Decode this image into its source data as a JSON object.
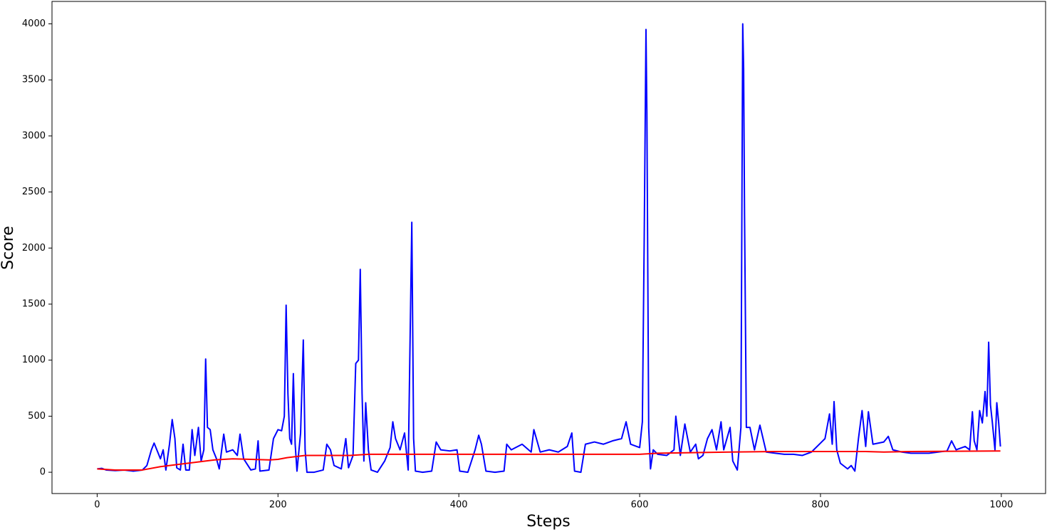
{
  "chart_data": {
    "type": "line",
    "xlabel": "Steps",
    "ylabel": "Score",
    "xlim": [
      -49.95,
      1048.95
    ],
    "ylim": [
      -190,
      4200
    ],
    "xticks": [
      0,
      200,
      400,
      600,
      800,
      1000
    ],
    "yticks": [
      0,
      500,
      1000,
      1500,
      2000,
      2500,
      3000,
      3500,
      4000
    ],
    "grid": false,
    "series": [
      {
        "color": "#0000ff",
        "x": [
          0,
          5,
          10,
          20,
          30,
          40,
          50,
          55,
          60,
          63,
          66,
          70,
          73,
          76,
          80,
          83,
          86,
          88,
          92,
          95,
          98,
          102,
          105,
          108,
          112,
          115,
          118,
          120,
          122,
          125,
          128,
          132,
          135,
          140,
          143,
          150,
          155,
          158,
          162,
          170,
          175,
          178,
          180,
          190,
          195,
          200,
          204,
          207,
          209,
          211,
          213,
          215,
          217,
          219,
          221,
          225,
          228,
          230,
          232,
          240,
          250,
          254,
          258,
          262,
          270,
          275,
          278,
          283,
          286,
          289,
          291,
          293,
          295,
          297,
          300,
          303,
          310,
          318,
          324,
          327,
          330,
          335,
          340,
          344,
          348,
          350,
          352,
          360,
          370,
          375,
          380,
          390,
          398,
          401,
          410,
          418,
          422,
          425,
          430,
          440,
          450,
          453,
          458,
          470,
          480,
          483,
          490,
          500,
          510,
          520,
          525,
          528,
          535,
          540,
          550,
          560,
          570,
          580,
          585,
          590,
          600,
          603,
          605,
          607,
          608,
          610,
          612,
          615,
          620,
          630,
          638,
          640,
          645,
          650,
          656,
          662,
          665,
          670,
          675,
          680,
          685,
          690,
          693,
          700,
          703,
          708,
          712,
          714,
          715,
          716,
          718,
          722,
          727,
          733,
          740,
          750,
          760,
          770,
          780,
          790,
          800,
          805,
          810,
          813,
          815,
          818,
          822,
          830,
          834,
          838,
          842,
          846,
          850,
          853,
          858,
          870,
          875,
          880,
          890,
          900,
          920,
          940,
          945,
          950,
          960,
          965,
          968,
          970,
          973,
          976,
          979,
          982,
          984,
          986,
          988,
          990,
          993,
          995,
          997,
          999
        ],
        "values": [
          30,
          35,
          20,
          15,
          20,
          10,
          20,
          60,
          200,
          260,
          200,
          120,
          200,
          20,
          250,
          470,
          300,
          40,
          20,
          250,
          20,
          20,
          380,
          150,
          400,
          100,
          200,
          1010,
          400,
          380,
          200,
          120,
          30,
          340,
          180,
          200,
          150,
          340,
          120,
          20,
          30,
          280,
          10,
          20,
          300,
          380,
          370,
          500,
          1490,
          700,
          300,
          250,
          880,
          250,
          10,
          350,
          1180,
          200,
          0,
          0,
          20,
          250,
          200,
          60,
          30,
          300,
          40,
          150,
          970,
          1000,
          1810,
          700,
          100,
          620,
          200,
          20,
          0,
          100,
          220,
          450,
          300,
          200,
          350,
          20,
          2230,
          300,
          10,
          0,
          10,
          270,
          200,
          190,
          200,
          10,
          0,
          200,
          330,
          250,
          10,
          0,
          10,
          250,
          200,
          250,
          180,
          380,
          180,
          200,
          180,
          230,
          350,
          10,
          0,
          250,
          270,
          250,
          280,
          300,
          450,
          250,
          220,
          450,
          2050,
          3950,
          3200,
          400,
          30,
          200,
          160,
          150,
          200,
          500,
          150,
          430,
          180,
          250,
          120,
          150,
          300,
          380,
          200,
          450,
          200,
          400,
          100,
          20,
          400,
          4000,
          3600,
          2300,
          400,
          400,
          200,
          420,
          180,
          170,
          160,
          160,
          150,
          180,
          260,
          300,
          520,
          250,
          630,
          200,
          80,
          30,
          60,
          10,
          300,
          550,
          230,
          540,
          250,
          270,
          320,
          200,
          180,
          170,
          170,
          190,
          280,
          200,
          230,
          200,
          540,
          280,
          200,
          550,
          440,
          720,
          500,
          1160,
          600,
          450,
          200,
          620,
          450,
          230
        ]
      },
      {
        "color": "#ff0000",
        "x": [
          0,
          20,
          50,
          70,
          100,
          130,
          150,
          170,
          190,
          200,
          210,
          230,
          280,
          300,
          400,
          500,
          600,
          620,
          700,
          750,
          850,
          870,
          900,
          999
        ],
        "values": [
          30,
          20,
          20,
          50,
          80,
          110,
          120,
          115,
          110,
          115,
          130,
          150,
          150,
          160,
          160,
          160,
          160,
          170,
          180,
          185,
          185,
          180,
          185,
          190
        ]
      }
    ]
  }
}
